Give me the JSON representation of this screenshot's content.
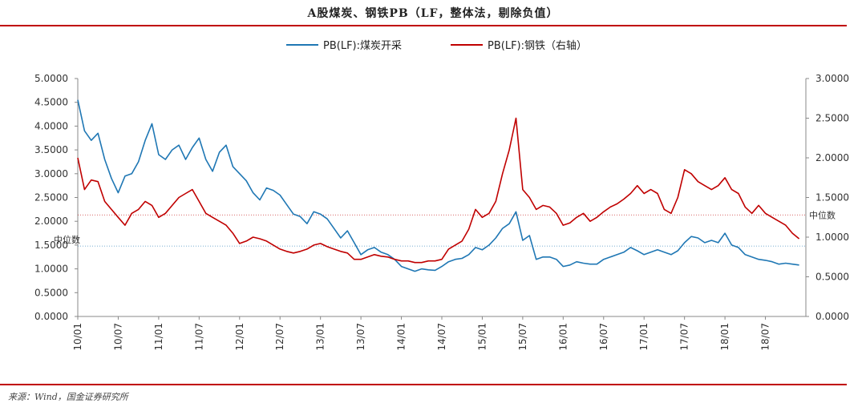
{
  "title": "A股煤炭、钢铁PB（LF，整体法，剔除负值）",
  "source": "来源：Wind，国金证券研究所",
  "chart_data": {
    "type": "line",
    "title": "A股煤炭、钢铁PB（LF，整体法，剔除负值）",
    "x_tick_labels": [
      "10/01",
      "10/07",
      "11/01",
      "11/07",
      "12/01",
      "12/07",
      "13/01",
      "13/07",
      "14/01",
      "14/07",
      "15/01",
      "15/07",
      "16/01",
      "16/07",
      "17/01",
      "17/07",
      "18/01",
      "18/07"
    ],
    "left_axis": {
      "ylim": [
        0,
        5
      ],
      "ticks": [
        "0.0000",
        "0.5000",
        "1.0000",
        "1.5000",
        "2.0000",
        "2.5000",
        "3.0000",
        "3.5000",
        "4.0000",
        "4.5000",
        "5.0000"
      ]
    },
    "right_axis": {
      "ylim": [
        0,
        3
      ],
      "ticks": [
        "0.0000",
        "0.5000",
        "1.0000",
        "1.5000",
        "2.0000",
        "2.5000",
        "3.0000"
      ]
    },
    "grid": false,
    "legend_position": "top-center",
    "median_label": "中位数",
    "series": [
      {
        "name": "PB(LF):煤炭开采",
        "axis": "left",
        "color": "#1f77b4",
        "median": 1.48,
        "points": [
          [
            "2010-01",
            4.55
          ],
          [
            "2010-02",
            3.9
          ],
          [
            "2010-03",
            3.7
          ],
          [
            "2010-04",
            3.85
          ],
          [
            "2010-05",
            3.3
          ],
          [
            "2010-06",
            2.9
          ],
          [
            "2010-07",
            2.6
          ],
          [
            "2010-08",
            2.95
          ],
          [
            "2010-09",
            3.0
          ],
          [
            "2010-10",
            3.25
          ],
          [
            "2010-11",
            3.7
          ],
          [
            "2010-12",
            4.05
          ],
          [
            "2011-01",
            3.4
          ],
          [
            "2011-02",
            3.3
          ],
          [
            "2011-03",
            3.5
          ],
          [
            "2011-04",
            3.6
          ],
          [
            "2011-05",
            3.3
          ],
          [
            "2011-06",
            3.55
          ],
          [
            "2011-07",
            3.75
          ],
          [
            "2011-08",
            3.3
          ],
          [
            "2011-09",
            3.05
          ],
          [
            "2011-10",
            3.45
          ],
          [
            "2011-11",
            3.6
          ],
          [
            "2011-12",
            3.15
          ],
          [
            "2012-01",
            3.0
          ],
          [
            "2012-02",
            2.85
          ],
          [
            "2012-03",
            2.6
          ],
          [
            "2012-04",
            2.45
          ],
          [
            "2012-05",
            2.7
          ],
          [
            "2012-06",
            2.65
          ],
          [
            "2012-07",
            2.55
          ],
          [
            "2012-08",
            2.35
          ],
          [
            "2012-09",
            2.15
          ],
          [
            "2012-10",
            2.1
          ],
          [
            "2012-11",
            1.95
          ],
          [
            "2012-12",
            2.2
          ],
          [
            "2013-01",
            2.15
          ],
          [
            "2013-02",
            2.05
          ],
          [
            "2013-03",
            1.85
          ],
          [
            "2013-04",
            1.65
          ],
          [
            "2013-05",
            1.8
          ],
          [
            "2013-06",
            1.55
          ],
          [
            "2013-07",
            1.3
          ],
          [
            "2013-08",
            1.4
          ],
          [
            "2013-09",
            1.45
          ],
          [
            "2013-10",
            1.35
          ],
          [
            "2013-11",
            1.3
          ],
          [
            "2013-12",
            1.2
          ],
          [
            "2014-01",
            1.05
          ],
          [
            "2014-02",
            1.0
          ],
          [
            "2014-03",
            0.95
          ],
          [
            "2014-04",
            1.0
          ],
          [
            "2014-05",
            0.98
          ],
          [
            "2014-06",
            0.97
          ],
          [
            "2014-07",
            1.05
          ],
          [
            "2014-08",
            1.15
          ],
          [
            "2014-09",
            1.2
          ],
          [
            "2014-10",
            1.22
          ],
          [
            "2014-11",
            1.3
          ],
          [
            "2014-12",
            1.45
          ],
          [
            "2015-01",
            1.4
          ],
          [
            "2015-02",
            1.5
          ],
          [
            "2015-03",
            1.65
          ],
          [
            "2015-04",
            1.85
          ],
          [
            "2015-05",
            1.95
          ],
          [
            "2015-06",
            2.2
          ],
          [
            "2015-07",
            1.6
          ],
          [
            "2015-08",
            1.7
          ],
          [
            "2015-09",
            1.2
          ],
          [
            "2015-10",
            1.25
          ],
          [
            "2015-11",
            1.25
          ],
          [
            "2015-12",
            1.2
          ],
          [
            "2016-01",
            1.05
          ],
          [
            "2016-02",
            1.08
          ],
          [
            "2016-03",
            1.15
          ],
          [
            "2016-04",
            1.12
          ],
          [
            "2016-05",
            1.1
          ],
          [
            "2016-06",
            1.1
          ],
          [
            "2016-07",
            1.2
          ],
          [
            "2016-08",
            1.25
          ],
          [
            "2016-09",
            1.3
          ],
          [
            "2016-10",
            1.35
          ],
          [
            "2016-11",
            1.45
          ],
          [
            "2016-12",
            1.38
          ],
          [
            "2017-01",
            1.3
          ],
          [
            "2017-02",
            1.35
          ],
          [
            "2017-03",
            1.4
          ],
          [
            "2017-04",
            1.35
          ],
          [
            "2017-05",
            1.3
          ],
          [
            "2017-06",
            1.38
          ],
          [
            "2017-07",
            1.55
          ],
          [
            "2017-08",
            1.68
          ],
          [
            "2017-09",
            1.65
          ],
          [
            "2017-10",
            1.55
          ],
          [
            "2017-11",
            1.6
          ],
          [
            "2017-12",
            1.55
          ],
          [
            "2018-01",
            1.75
          ],
          [
            "2018-02",
            1.5
          ],
          [
            "2018-03",
            1.45
          ],
          [
            "2018-04",
            1.3
          ],
          [
            "2018-05",
            1.25
          ],
          [
            "2018-06",
            1.2
          ],
          [
            "2018-07",
            1.18
          ],
          [
            "2018-08",
            1.15
          ],
          [
            "2018-09",
            1.1
          ],
          [
            "2018-10",
            1.12
          ],
          [
            "2018-11",
            1.1
          ],
          [
            "2018-12",
            1.08
          ]
        ]
      },
      {
        "name": "PB(LF):钢铁（右轴）",
        "axis": "right",
        "color": "#c00000",
        "median": 1.28,
        "points": [
          [
            "2010-01",
            2.0
          ],
          [
            "2010-02",
            1.6
          ],
          [
            "2010-03",
            1.72
          ],
          [
            "2010-04",
            1.7
          ],
          [
            "2010-05",
            1.45
          ],
          [
            "2010-06",
            1.35
          ],
          [
            "2010-07",
            1.25
          ],
          [
            "2010-08",
            1.15
          ],
          [
            "2010-09",
            1.3
          ],
          [
            "2010-10",
            1.35
          ],
          [
            "2010-11",
            1.45
          ],
          [
            "2010-12",
            1.4
          ],
          [
            "2011-01",
            1.25
          ],
          [
            "2011-02",
            1.3
          ],
          [
            "2011-03",
            1.4
          ],
          [
            "2011-04",
            1.5
          ],
          [
            "2011-05",
            1.55
          ],
          [
            "2011-06",
            1.6
          ],
          [
            "2011-07",
            1.45
          ],
          [
            "2011-08",
            1.3
          ],
          [
            "2011-09",
            1.25
          ],
          [
            "2011-10",
            1.2
          ],
          [
            "2011-11",
            1.15
          ],
          [
            "2011-12",
            1.05
          ],
          [
            "2012-01",
            0.92
          ],
          [
            "2012-02",
            0.95
          ],
          [
            "2012-03",
            1.0
          ],
          [
            "2012-04",
            0.98
          ],
          [
            "2012-05",
            0.95
          ],
          [
            "2012-06",
            0.9
          ],
          [
            "2012-07",
            0.85
          ],
          [
            "2012-08",
            0.82
          ],
          [
            "2012-09",
            0.8
          ],
          [
            "2012-10",
            0.82
          ],
          [
            "2012-11",
            0.85
          ],
          [
            "2012-12",
            0.9
          ],
          [
            "2013-01",
            0.92
          ],
          [
            "2013-02",
            0.88
          ],
          [
            "2013-03",
            0.85
          ],
          [
            "2013-04",
            0.82
          ],
          [
            "2013-05",
            0.8
          ],
          [
            "2013-06",
            0.72
          ],
          [
            "2013-07",
            0.72
          ],
          [
            "2013-08",
            0.75
          ],
          [
            "2013-09",
            0.78
          ],
          [
            "2013-10",
            0.76
          ],
          [
            "2013-11",
            0.75
          ],
          [
            "2013-12",
            0.72
          ],
          [
            "2014-01",
            0.7
          ],
          [
            "2014-02",
            0.7
          ],
          [
            "2014-03",
            0.68
          ],
          [
            "2014-04",
            0.68
          ],
          [
            "2014-05",
            0.7
          ],
          [
            "2014-06",
            0.7
          ],
          [
            "2014-07",
            0.72
          ],
          [
            "2014-08",
            0.85
          ],
          [
            "2014-09",
            0.9
          ],
          [
            "2014-10",
            0.95
          ],
          [
            "2014-11",
            1.1
          ],
          [
            "2014-12",
            1.35
          ],
          [
            "2015-01",
            1.25
          ],
          [
            "2015-02",
            1.3
          ],
          [
            "2015-03",
            1.45
          ],
          [
            "2015-04",
            1.8
          ],
          [
            "2015-05",
            2.1
          ],
          [
            "2015-06",
            2.5
          ],
          [
            "2015-07",
            1.6
          ],
          [
            "2015-08",
            1.5
          ],
          [
            "2015-09",
            1.35
          ],
          [
            "2015-10",
            1.4
          ],
          [
            "2015-11",
            1.38
          ],
          [
            "2015-12",
            1.3
          ],
          [
            "2016-01",
            1.15
          ],
          [
            "2016-02",
            1.18
          ],
          [
            "2016-03",
            1.25
          ],
          [
            "2016-04",
            1.3
          ],
          [
            "2016-05",
            1.2
          ],
          [
            "2016-06",
            1.25
          ],
          [
            "2016-07",
            1.32
          ],
          [
            "2016-08",
            1.38
          ],
          [
            "2016-09",
            1.42
          ],
          [
            "2016-10",
            1.48
          ],
          [
            "2016-11",
            1.55
          ],
          [
            "2016-12",
            1.65
          ],
          [
            "2017-01",
            1.55
          ],
          [
            "2017-02",
            1.6
          ],
          [
            "2017-03",
            1.55
          ],
          [
            "2017-04",
            1.35
          ],
          [
            "2017-05",
            1.3
          ],
          [
            "2017-06",
            1.5
          ],
          [
            "2017-07",
            1.85
          ],
          [
            "2017-08",
            1.8
          ],
          [
            "2017-09",
            1.7
          ],
          [
            "2017-10",
            1.65
          ],
          [
            "2017-11",
            1.6
          ],
          [
            "2017-12",
            1.65
          ],
          [
            "2018-01",
            1.75
          ],
          [
            "2018-02",
            1.6
          ],
          [
            "2018-03",
            1.55
          ],
          [
            "2018-04",
            1.38
          ],
          [
            "2018-05",
            1.3
          ],
          [
            "2018-06",
            1.4
          ],
          [
            "2018-07",
            1.3
          ],
          [
            "2018-08",
            1.25
          ],
          [
            "2018-09",
            1.2
          ],
          [
            "2018-10",
            1.15
          ],
          [
            "2018-11",
            1.05
          ],
          [
            "2018-12",
            0.98
          ]
        ]
      }
    ]
  }
}
